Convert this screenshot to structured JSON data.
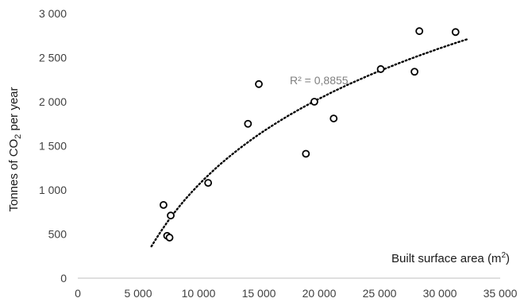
{
  "chart_data": {
    "type": "scatter",
    "ylabel": "Tonnes of CO",
    "ylabel_sub": "2",
    "ylabel_tail": " per year",
    "xlabel": "Built surface area (m",
    "xlabel_sup": "2",
    "xlabel_tail": ")",
    "xlim": [
      0,
      35000
    ],
    "ylim": [
      0,
      3000
    ],
    "x_ticks": [
      0,
      5000,
      10000,
      15000,
      20000,
      25000,
      30000,
      35000
    ],
    "x_tick_labels": [
      "0",
      "5 000",
      "10 000",
      "15 000",
      "20 000",
      "25 000",
      "30 000",
      "35 000"
    ],
    "y_ticks": [
      0,
      500,
      1000,
      1500,
      2000,
      2500,
      3000
    ],
    "y_tick_labels": [
      "0",
      "500",
      "1 000",
      "1 500",
      "2 000",
      "2 500",
      "3 000"
    ],
    "grid": false,
    "series": [
      {
        "marker": "open-circle",
        "color": "#000000",
        "x": [
          7100,
          7400,
          7600,
          7700,
          10800,
          14100,
          15000,
          18900,
          19600,
          21200,
          25100,
          27900,
          28300,
          31300
        ],
        "y": [
          830,
          480,
          460,
          710,
          1080,
          1750,
          2200,
          1410,
          2000,
          1810,
          2370,
          2340,
          2800,
          2790
        ]
      }
    ],
    "trendline": {
      "type": "logarithmic",
      "style": "dotted",
      "color": "#000000",
      "x_start": 6100,
      "x_end": 32300,
      "y_start": 360,
      "y_end": 2710,
      "label": "R² = 0,8855"
    }
  }
}
